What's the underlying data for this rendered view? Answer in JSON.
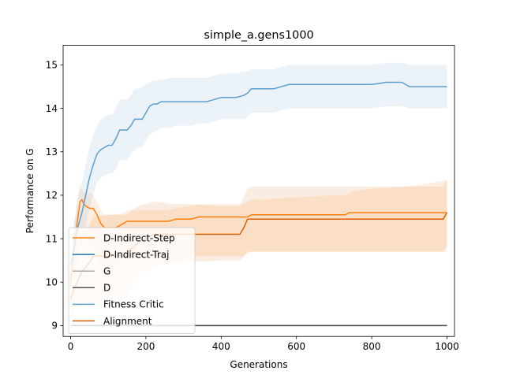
{
  "chart_data": {
    "type": "line",
    "title": "simple_a.gens1000",
    "xlabel": "Generations",
    "ylabel": "Performance on G",
    "xlim": [
      -20,
      1020
    ],
    "ylim": [
      8.75,
      15.45
    ],
    "xticks": [
      0,
      200,
      400,
      600,
      800,
      1000
    ],
    "yticks": [
      9,
      10,
      11,
      12,
      13,
      14,
      15
    ],
    "grid": false,
    "legend_position": "lower-left",
    "series": [
      {
        "name": "D-Indirect-Step",
        "color": "#ff7f0e",
        "x": [
          0,
          10,
          20,
          25,
          30,
          35,
          40,
          50,
          60,
          70,
          80,
          90,
          100,
          120,
          140,
          150,
          200,
          260,
          280,
          320,
          340,
          360,
          460,
          470,
          480,
          500,
          600,
          700,
          730,
          740,
          760,
          800,
          900,
          1000
        ],
        "y": [
          10.0,
          10.9,
          11.55,
          11.85,
          11.9,
          11.8,
          11.75,
          11.7,
          11.7,
          11.55,
          11.35,
          11.25,
          11.25,
          11.25,
          11.35,
          11.4,
          11.4,
          11.4,
          11.45,
          11.45,
          11.5,
          11.5,
          11.5,
          11.5,
          11.55,
          11.55,
          11.55,
          11.55,
          11.55,
          11.6,
          11.6,
          11.6,
          11.6,
          11.6
        ],
        "lower": [
          9.9,
          10.3,
          10.7,
          10.9,
          10.9,
          10.85,
          10.8,
          10.8,
          10.75,
          10.6,
          10.4,
          10.35,
          10.35,
          10.35,
          10.4,
          10.45,
          10.45,
          10.45,
          10.5,
          10.55,
          10.6,
          10.6,
          10.6,
          10.65,
          10.7,
          10.7,
          10.7,
          10.7,
          10.7,
          10.7,
          10.7,
          10.7,
          10.7,
          10.7
        ],
        "upper": [
          10.2,
          11.4,
          12.0,
          12.2,
          12.15,
          12.05,
          12.05,
          12.05,
          12.0,
          11.85,
          11.65,
          11.55,
          11.55,
          11.55,
          11.6,
          11.65,
          11.65,
          11.65,
          11.7,
          11.75,
          11.8,
          11.8,
          11.8,
          11.85,
          11.9,
          11.9,
          11.95,
          12.0,
          12.0,
          12.05,
          12.1,
          12.15,
          12.2,
          12.35
        ]
      },
      {
        "name": "D-Indirect-Traj",
        "color": "#1f77b4",
        "x": [],
        "y": []
      },
      {
        "name": "G",
        "color": "#aaaaaa",
        "x": [
          0,
          1000
        ],
        "y": [
          9.0,
          9.0
        ]
      },
      {
        "name": "D",
        "color": "#555555",
        "x": [
          0,
          1000
        ],
        "y": [
          9.0,
          9.0
        ]
      },
      {
        "name": "Fitness Critic",
        "color": "#5a9fd0",
        "x": [
          0,
          10,
          20,
          30,
          40,
          50,
          60,
          70,
          80,
          90,
          100,
          110,
          120,
          130,
          140,
          150,
          160,
          170,
          180,
          190,
          200,
          210,
          220,
          230,
          240,
          260,
          280,
          300,
          320,
          340,
          360,
          380,
          400,
          420,
          440,
          460,
          470,
          480,
          500,
          520,
          540,
          560,
          580,
          600,
          650,
          700,
          750,
          800,
          840,
          860,
          880,
          900,
          950,
          1000
        ],
        "y": [
          10.4,
          10.8,
          11.3,
          11.6,
          12.0,
          12.4,
          12.7,
          12.95,
          13.05,
          13.1,
          13.15,
          13.15,
          13.3,
          13.5,
          13.5,
          13.5,
          13.6,
          13.75,
          13.75,
          13.75,
          13.9,
          14.05,
          14.1,
          14.1,
          14.15,
          14.15,
          14.15,
          14.15,
          14.15,
          14.15,
          14.15,
          14.2,
          14.25,
          14.25,
          14.25,
          14.3,
          14.35,
          14.45,
          14.45,
          14.45,
          14.45,
          14.5,
          14.55,
          14.55,
          14.55,
          14.55,
          14.55,
          14.55,
          14.6,
          14.6,
          14.6,
          14.5,
          14.5,
          14.5
        ],
        "lower": [
          9.9,
          10.2,
          10.6,
          10.9,
          11.3,
          11.7,
          12.0,
          12.3,
          12.4,
          12.45,
          12.5,
          12.5,
          12.6,
          12.8,
          12.8,
          12.8,
          12.95,
          13.05,
          13.1,
          13.1,
          13.25,
          13.4,
          13.45,
          13.5,
          13.55,
          13.55,
          13.6,
          13.6,
          13.6,
          13.65,
          13.65,
          13.7,
          13.75,
          13.75,
          13.75,
          13.75,
          13.8,
          13.9,
          13.9,
          13.9,
          13.9,
          13.95,
          14.0,
          14.0,
          14.0,
          14.0,
          14.0,
          14.0,
          14.05,
          14.05,
          14.05,
          14.0,
          14.0,
          14.0
        ],
        "upper": [
          10.9,
          11.4,
          11.95,
          12.3,
          12.7,
          13.1,
          13.4,
          13.6,
          13.75,
          13.8,
          13.85,
          13.85,
          14.0,
          14.2,
          14.2,
          14.2,
          14.3,
          14.45,
          14.45,
          14.5,
          14.55,
          14.6,
          14.65,
          14.65,
          14.65,
          14.7,
          14.7,
          14.7,
          14.7,
          14.7,
          14.7,
          14.75,
          14.8,
          14.8,
          14.8,
          14.85,
          14.85,
          14.9,
          14.9,
          14.9,
          14.9,
          14.95,
          15.0,
          15.0,
          15.0,
          15.0,
          15.0,
          15.0,
          15.05,
          15.05,
          15.05,
          15.0,
          15.0,
          15.0
        ]
      },
      {
        "name": "Alignment",
        "color": "#d95f02",
        "x": [
          0,
          10,
          20,
          30,
          50,
          60,
          100,
          150,
          160,
          180,
          200,
          220,
          240,
          260,
          280,
          300,
          400,
          450,
          460,
          470,
          480,
          500,
          600,
          700,
          800,
          900,
          990,
          1000
        ],
        "y": [
          9.6,
          9.85,
          10.05,
          10.25,
          10.45,
          10.6,
          10.6,
          10.6,
          10.75,
          10.9,
          11.0,
          11.1,
          11.1,
          11.1,
          11.1,
          11.1,
          11.1,
          11.1,
          11.25,
          11.45,
          11.45,
          11.45,
          11.45,
          11.45,
          11.45,
          11.45,
          11.45,
          11.6
        ],
        "lower": [
          9.2,
          9.3,
          9.4,
          9.45,
          9.5,
          9.55,
          9.6,
          9.6,
          9.8,
          10.1,
          10.2,
          10.35,
          10.4,
          10.4,
          10.45,
          10.45,
          10.5,
          10.5,
          10.6,
          10.7,
          10.7,
          10.7,
          10.7,
          10.7,
          10.7,
          10.7,
          10.7,
          10.85
        ],
        "upper": [
          10.0,
          10.45,
          10.75,
          11.0,
          11.3,
          11.5,
          11.55,
          11.55,
          11.65,
          11.75,
          11.8,
          11.85,
          11.85,
          11.8,
          11.8,
          11.8,
          11.75,
          11.75,
          11.95,
          12.15,
          12.2,
          12.2,
          12.2,
          12.2,
          12.2,
          12.2,
          12.2,
          12.35
        ]
      }
    ]
  }
}
